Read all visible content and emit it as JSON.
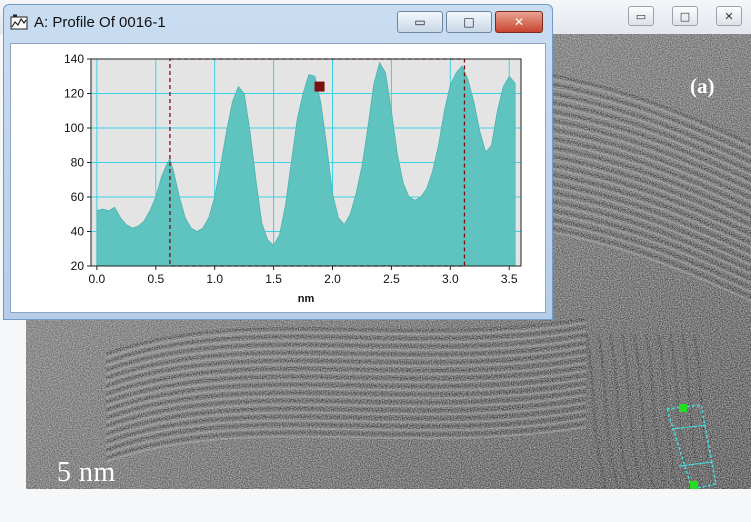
{
  "background_window": {
    "minimize_icon": "minimize-icon",
    "minimize_glyph": "▭",
    "maximize_icon": "maximize-icon",
    "maximize_glyph": "□",
    "close_icon": "close-icon",
    "close_glyph": "✕",
    "panel_label": "(a)",
    "scale_bar_label": "5 nm",
    "roi_handle_color": "#22dd22",
    "roi_line_color": "#40e0e0"
  },
  "profile_window": {
    "title": "A: Profile Of 0016-1",
    "app_icon": "profile-tool-icon",
    "minimize_glyph": "▭",
    "maximize_glyph": "□",
    "close_glyph": "✕",
    "accent": "#5fc3c0"
  },
  "chart_data": {
    "type": "area",
    "xlabel": "nm",
    "ylabel": "",
    "xlim": [
      -0.05,
      3.6
    ],
    "ylim": [
      20,
      140
    ],
    "xticks": [
      "0.0",
      "0.5",
      "1.0",
      "1.5",
      "2.0",
      "2.5",
      "3.0",
      "3.5"
    ],
    "yticks": [
      "20",
      "40",
      "60",
      "80",
      "100",
      "120",
      "140"
    ],
    "grid": true,
    "selection_markers": [
      0.62,
      3.12
    ],
    "cursor_marker": {
      "x": 1.89,
      "y": 124
    },
    "fill_color": "#5fc3c0",
    "grid_color": "#39d3e6",
    "marker_color": "#7a1010",
    "x": [
      0.0,
      0.05,
      0.1,
      0.15,
      0.2,
      0.25,
      0.3,
      0.35,
      0.4,
      0.45,
      0.5,
      0.55,
      0.6,
      0.62,
      0.65,
      0.7,
      0.75,
      0.8,
      0.85,
      0.9,
      0.95,
      1.0,
      1.05,
      1.1,
      1.15,
      1.2,
      1.25,
      1.3,
      1.35,
      1.4,
      1.45,
      1.5,
      1.55,
      1.6,
      1.65,
      1.7,
      1.75,
      1.8,
      1.85,
      1.9,
      1.95,
      2.0,
      2.05,
      2.1,
      2.15,
      2.2,
      2.25,
      2.3,
      2.35,
      2.4,
      2.45,
      2.5,
      2.55,
      2.6,
      2.65,
      2.7,
      2.75,
      2.8,
      2.85,
      2.9,
      2.95,
      3.0,
      3.05,
      3.1,
      3.15,
      3.2,
      3.25,
      3.3,
      3.35,
      3.4,
      3.45,
      3.5,
      3.55
    ],
    "values": [
      52,
      53,
      52,
      54,
      48,
      44,
      42,
      43,
      46,
      52,
      60,
      72,
      80,
      82,
      75,
      60,
      48,
      42,
      40,
      42,
      48,
      60,
      78,
      98,
      115,
      124,
      120,
      98,
      70,
      45,
      35,
      32,
      38,
      55,
      80,
      105,
      120,
      131,
      130,
      115,
      90,
      62,
      48,
      44,
      50,
      62,
      78,
      100,
      125,
      138,
      132,
      110,
      85,
      68,
      60,
      58,
      60,
      65,
      75,
      90,
      110,
      125,
      132,
      136,
      128,
      115,
      98,
      86,
      90,
      110,
      124,
      130,
      126
    ]
  }
}
